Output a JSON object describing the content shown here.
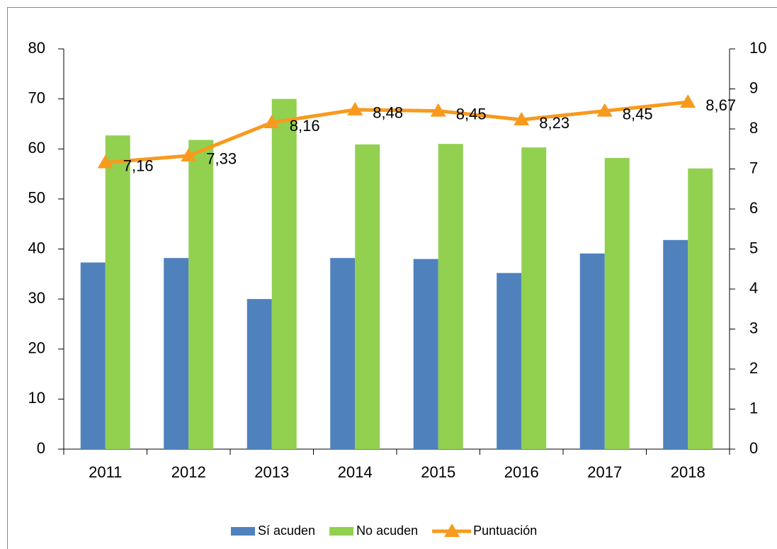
{
  "chart_data": {
    "type": "bar",
    "categories": [
      "2011",
      "2012",
      "2013",
      "2014",
      "2015",
      "2016",
      "2017",
      "2018"
    ],
    "series": [
      {
        "name": "Sí acuden",
        "color": "#4f81bd",
        "type": "bar",
        "values": [
          37.3,
          38.2,
          30,
          38.2,
          38,
          35.2,
          39.1,
          41.8
        ]
      },
      {
        "name": "No acuden",
        "color": "#92d050",
        "type": "bar",
        "values": [
          62.7,
          61.8,
          70,
          60.9,
          61,
          60.3,
          58.2,
          56.1
        ]
      },
      {
        "name": "Puntuación",
        "color": "#f79a1e",
        "type": "line",
        "axis": "y2",
        "values": [
          7.16,
          7.33,
          8.16,
          8.48,
          8.45,
          8.23,
          8.45,
          8.67
        ],
        "value_labels": [
          "7,16",
          "7,33",
          "8,16",
          "8,48",
          "8,45",
          "8,23",
          "8,45",
          "8,67"
        ]
      }
    ],
    "ylim": [
      0,
      80
    ],
    "yticks": [
      0,
      10,
      20,
      30,
      40,
      50,
      60,
      70,
      80
    ],
    "y2lim": [
      0,
      10
    ],
    "y2ticks": [
      0,
      1,
      2,
      3,
      4,
      5,
      6,
      7,
      8,
      9,
      10
    ],
    "legend": "bottom"
  }
}
